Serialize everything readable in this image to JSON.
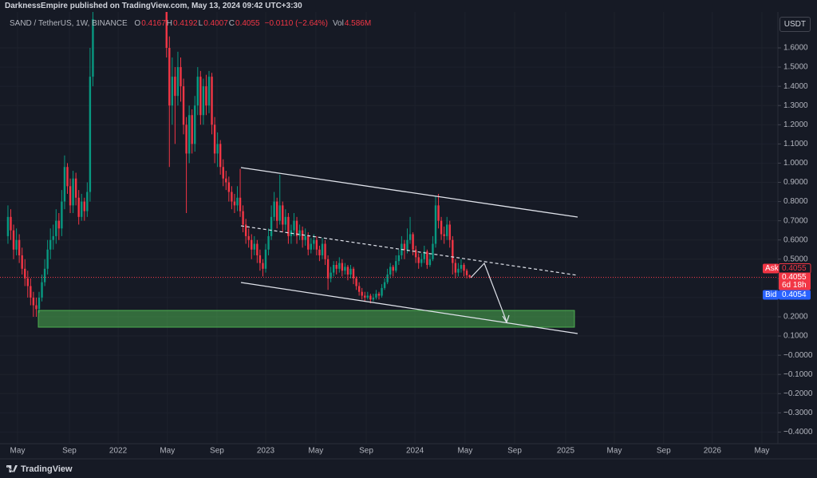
{
  "header": {
    "publisher_line": "DarknessEmpire published on TradingView.com, May 13, 2024 09:42 UTC+3:30",
    "brand": "TradingView"
  },
  "chart_data": {
    "type": "candlestick",
    "symbol": "SAND / TetherUS, 1W, BINANCE",
    "ohlc_labels": [
      {
        "label": "O",
        "value": 0.4167
      },
      {
        "label": "H",
        "value": 0.4192
      },
      {
        "label": "L",
        "value": 0.4007
      },
      {
        "label": "C",
        "value": 0.4055
      }
    ],
    "change": "−0.0110 (−2.64%)",
    "volume_label": "Vol",
    "volume": "4.586M",
    "currency": "USDT",
    "up_color": "#089981",
    "down_color": "#f23645",
    "grid": true,
    "xlim": [
      -2.8,
      271
    ],
    "ylim": [
      -0.444,
      1.787
    ],
    "xticks": [
      {
        "value": 3.4,
        "label": "May"
      },
      {
        "value": 21.7,
        "label": "Sep"
      },
      {
        "value": 38.9,
        "label": "2022"
      },
      {
        "value": 56.3,
        "label": "May"
      },
      {
        "value": 73.8,
        "label": "Sep"
      },
      {
        "value": 91,
        "label": "2023"
      },
      {
        "value": 108.7,
        "label": "May"
      },
      {
        "value": 126.5,
        "label": "Sep"
      },
      {
        "value": 143.7,
        "label": "2024"
      },
      {
        "value": 161.4,
        "label": "May"
      },
      {
        "value": 178.9,
        "label": "Sep"
      },
      {
        "value": 196.9,
        "label": "2025"
      },
      {
        "value": 214.1,
        "label": "May"
      },
      {
        "value": 231.5,
        "label": "Sep"
      },
      {
        "value": 248.7,
        "label": "2026"
      },
      {
        "value": 266.2,
        "label": "May"
      }
    ],
    "yticks": [
      {
        "value": 1.6,
        "label": "1.6000"
      },
      {
        "value": 1.5,
        "label": "1.5000"
      },
      {
        "value": 1.4,
        "label": "1.4000"
      },
      {
        "value": 1.3,
        "label": "1.3000"
      },
      {
        "value": 1.2,
        "label": "1.2000"
      },
      {
        "value": 1.1,
        "label": "1.1000"
      },
      {
        "value": 1.0,
        "label": "1.0000"
      },
      {
        "value": 0.9,
        "label": "0.9000"
      },
      {
        "value": 0.8,
        "label": "0.8000"
      },
      {
        "value": 0.7,
        "label": "0.7000"
      },
      {
        "value": 0.6,
        "label": "0.6000"
      },
      {
        "value": 0.5,
        "label": "0.5000"
      },
      {
        "value": 0.4,
        "label": "0.4000"
      },
      {
        "value": 0.3,
        "label": "0.3000"
      },
      {
        "value": 0.2,
        "label": "0.2000"
      },
      {
        "value": 0.1,
        "label": "0.1000"
      },
      {
        "value": 0,
        "label": "−0.0000"
      },
      {
        "value": -0.1,
        "label": "−0.1000"
      },
      {
        "value": -0.2,
        "label": "−0.2000"
      },
      {
        "value": -0.3,
        "label": "−0.3000"
      },
      {
        "value": -0.4,
        "label": "−0.4000"
      }
    ],
    "ask_label": "Ask",
    "ask": 0.4055,
    "last_price": 0.4055,
    "countdown": "6d 18h",
    "bid_label": "Bid",
    "bid": 0.4054,
    "candles": [
      [
        0.62,
        0.78,
        0.58,
        0.72
      ],
      [
        0.72,
        0.76,
        0.6,
        0.65
      ],
      [
        0.65,
        0.68,
        0.5,
        0.55
      ],
      [
        0.55,
        0.66,
        0.52,
        0.6
      ],
      [
        0.6,
        0.63,
        0.48,
        0.52
      ],
      [
        0.52,
        0.56,
        0.42,
        0.45
      ],
      [
        0.45,
        0.5,
        0.36,
        0.4
      ],
      [
        0.4,
        0.44,
        0.3,
        0.36
      ],
      [
        0.36,
        0.4,
        0.26,
        0.3
      ],
      [
        0.3,
        0.33,
        0.2,
        0.26
      ],
      [
        0.26,
        0.3,
        0.2,
        0.24
      ],
      [
        0.24,
        0.33,
        0.22,
        0.3
      ],
      [
        0.3,
        0.42,
        0.28,
        0.38
      ],
      [
        0.38,
        0.5,
        0.36,
        0.45
      ],
      [
        0.45,
        0.6,
        0.42,
        0.55
      ],
      [
        0.55,
        0.66,
        0.5,
        0.6
      ],
      [
        0.6,
        0.68,
        0.55,
        0.62
      ],
      [
        0.62,
        0.76,
        0.58,
        0.7
      ],
      [
        0.7,
        0.74,
        0.6,
        0.66
      ],
      [
        0.66,
        0.86,
        0.62,
        0.8
      ],
      [
        0.8,
        1.04,
        0.76,
        0.98
      ],
      [
        0.98,
        1.0,
        0.84,
        0.88
      ],
      [
        0.88,
        0.92,
        0.74,
        0.78
      ],
      [
        0.78,
        0.96,
        0.74,
        0.92
      ],
      [
        0.92,
        0.95,
        0.78,
        0.82
      ],
      [
        0.82,
        0.86,
        0.68,
        0.72
      ],
      [
        0.72,
        0.84,
        0.7,
        0.8
      ],
      [
        0.8,
        0.82,
        0.7,
        0.75
      ],
      [
        0.75,
        0.9,
        0.72,
        0.85
      ],
      [
        0.85,
        1.6,
        0.8,
        1.45
      ],
      [
        1.45,
        1.95,
        1.4,
        1.75
      ],
      null,
      null,
      null,
      null,
      null,
      null,
      null,
      null,
      null,
      null,
      null,
      null,
      null,
      null,
      null,
      null,
      null,
      null,
      null,
      null,
      null,
      null,
      null,
      null,
      null,
      [
        1.85,
        1.95,
        1.55,
        1.6
      ],
      [
        1.6,
        1.66,
        0.98,
        1.3
      ],
      [
        1.3,
        1.55,
        1.2,
        1.45
      ],
      [
        1.45,
        1.5,
        1.1,
        1.35
      ],
      [
        1.35,
        1.58,
        1.3,
        1.5
      ],
      [
        1.5,
        1.55,
        1.32,
        1.4
      ],
      [
        1.4,
        1.44,
        1.15,
        1.2
      ],
      [
        1.2,
        1.24,
        0.74,
        1.05
      ],
      [
        1.05,
        1.3,
        1.0,
        1.25
      ],
      [
        1.25,
        1.28,
        1.05,
        1.1
      ],
      [
        1.1,
        1.35,
        1.06,
        1.3
      ],
      [
        1.3,
        1.5,
        1.25,
        1.45
      ],
      [
        1.45,
        1.48,
        1.2,
        1.25
      ],
      [
        1.25,
        1.44,
        1.2,
        1.4
      ],
      [
        1.4,
        1.46,
        1.25,
        1.3
      ],
      [
        1.3,
        1.48,
        1.26,
        1.45
      ],
      [
        1.45,
        1.47,
        1.15,
        1.2
      ],
      [
        1.2,
        1.24,
        1.0,
        1.05
      ],
      [
        1.05,
        1.16,
        0.98,
        1.1
      ],
      [
        1.1,
        1.12,
        0.94,
        0.98
      ],
      [
        0.98,
        1.02,
        0.88,
        0.92
      ],
      [
        0.92,
        0.96,
        0.86,
        0.9
      ],
      [
        0.9,
        0.93,
        0.8,
        0.85
      ],
      [
        0.85,
        0.88,
        0.76,
        0.8
      ],
      [
        0.8,
        0.84,
        0.74,
        0.78
      ],
      [
        0.78,
        0.88,
        0.75,
        0.82
      ],
      [
        0.82,
        0.97,
        0.72,
        0.75
      ],
      [
        0.75,
        0.78,
        0.64,
        0.68
      ],
      [
        0.68,
        0.71,
        0.58,
        0.62
      ],
      [
        0.62,
        0.66,
        0.56,
        0.6
      ],
      [
        0.6,
        0.63,
        0.5,
        0.55
      ],
      [
        0.55,
        0.62,
        0.52,
        0.58
      ],
      [
        0.58,
        0.6,
        0.48,
        0.52
      ],
      [
        0.52,
        0.55,
        0.44,
        0.48
      ],
      [
        0.48,
        0.5,
        0.41,
        0.45
      ],
      [
        0.45,
        0.58,
        0.43,
        0.55
      ],
      [
        0.55,
        0.66,
        0.52,
        0.62
      ],
      [
        0.62,
        0.78,
        0.6,
        0.72
      ],
      [
        0.72,
        0.85,
        0.7,
        0.8
      ],
      [
        0.8,
        0.82,
        0.66,
        0.7
      ],
      [
        0.7,
        0.94,
        0.68,
        0.78
      ],
      [
        0.78,
        0.8,
        0.64,
        0.68
      ],
      [
        0.68,
        0.76,
        0.65,
        0.72
      ],
      [
        0.72,
        0.74,
        0.58,
        0.62
      ],
      [
        0.62,
        0.68,
        0.58,
        0.65
      ],
      [
        0.65,
        0.74,
        0.62,
        0.7
      ],
      [
        0.7,
        0.72,
        0.58,
        0.62
      ],
      [
        0.62,
        0.68,
        0.6,
        0.65
      ],
      [
        0.65,
        0.67,
        0.56,
        0.6
      ],
      [
        0.6,
        0.66,
        0.57,
        0.62
      ],
      [
        0.62,
        0.64,
        0.52,
        0.55
      ],
      [
        0.55,
        0.61,
        0.53,
        0.58
      ],
      [
        0.58,
        0.63,
        0.55,
        0.6
      ],
      [
        0.6,
        0.62,
        0.52,
        0.55
      ],
      [
        0.55,
        0.57,
        0.49,
        0.52
      ],
      [
        0.52,
        0.61,
        0.5,
        0.58
      ],
      [
        0.58,
        0.6,
        0.47,
        0.5
      ],
      [
        0.5,
        0.52,
        0.34,
        0.4
      ],
      [
        0.4,
        0.46,
        0.38,
        0.43
      ],
      [
        0.43,
        0.49,
        0.41,
        0.47
      ],
      [
        0.47,
        0.49,
        0.42,
        0.45
      ],
      [
        0.45,
        0.51,
        0.43,
        0.48
      ],
      [
        0.48,
        0.5,
        0.41,
        0.44
      ],
      [
        0.44,
        0.48,
        0.42,
        0.46
      ],
      [
        0.46,
        0.47,
        0.39,
        0.42
      ],
      [
        0.42,
        0.47,
        0.4,
        0.45
      ],
      [
        0.45,
        0.46,
        0.37,
        0.4
      ],
      [
        0.4,
        0.41,
        0.34,
        0.36
      ],
      [
        0.36,
        0.38,
        0.31,
        0.33
      ],
      [
        0.33,
        0.35,
        0.29,
        0.31
      ],
      [
        0.31,
        0.33,
        0.28,
        0.3
      ],
      [
        0.3,
        0.33,
        0.29,
        0.31
      ],
      [
        0.31,
        0.32,
        0.27,
        0.29
      ],
      [
        0.29,
        0.32,
        0.28,
        0.3
      ],
      [
        0.3,
        0.34,
        0.29,
        0.32
      ],
      [
        0.32,
        0.33,
        0.29,
        0.31
      ],
      [
        0.31,
        0.37,
        0.3,
        0.35
      ],
      [
        0.35,
        0.4,
        0.34,
        0.38
      ],
      [
        0.38,
        0.45,
        0.37,
        0.42
      ],
      [
        0.42,
        0.48,
        0.4,
        0.46
      ],
      [
        0.46,
        0.47,
        0.41,
        0.44
      ],
      [
        0.44,
        0.52,
        0.43,
        0.49
      ],
      [
        0.49,
        0.55,
        0.47,
        0.52
      ],
      [
        0.52,
        0.62,
        0.5,
        0.58
      ],
      [
        0.58,
        0.6,
        0.5,
        0.55
      ],
      [
        0.55,
        0.66,
        0.53,
        0.6
      ],
      [
        0.6,
        0.72,
        0.58,
        0.63
      ],
      [
        0.63,
        0.64,
        0.52,
        0.55
      ],
      [
        0.55,
        0.57,
        0.48,
        0.51
      ],
      [
        0.51,
        0.53,
        0.45,
        0.48
      ],
      [
        0.48,
        0.53,
        0.46,
        0.5
      ],
      [
        0.5,
        0.57,
        0.48,
        0.54
      ],
      [
        0.54,
        0.55,
        0.45,
        0.47
      ],
      [
        0.47,
        0.53,
        0.46,
        0.5
      ],
      [
        0.5,
        0.62,
        0.49,
        0.58
      ],
      [
        0.58,
        0.83,
        0.56,
        0.78
      ],
      [
        0.78,
        0.84,
        0.66,
        0.7
      ],
      [
        0.7,
        0.72,
        0.6,
        0.63
      ],
      [
        0.63,
        0.67,
        0.58,
        0.62
      ],
      [
        0.62,
        0.72,
        0.6,
        0.68
      ],
      [
        0.68,
        0.7,
        0.56,
        0.6
      ],
      [
        0.6,
        0.62,
        0.42,
        0.48
      ],
      [
        0.48,
        0.5,
        0.4,
        0.43
      ],
      [
        0.43,
        0.48,
        0.41,
        0.45
      ],
      [
        0.45,
        0.5,
        0.43,
        0.47
      ],
      [
        0.47,
        0.48,
        0.41,
        0.44
      ],
      [
        0.44,
        0.45,
        0.4,
        0.4167
      ],
      [
        0.4167,
        0.4192,
        0.4007,
        0.4055
      ]
    ]
  }
}
